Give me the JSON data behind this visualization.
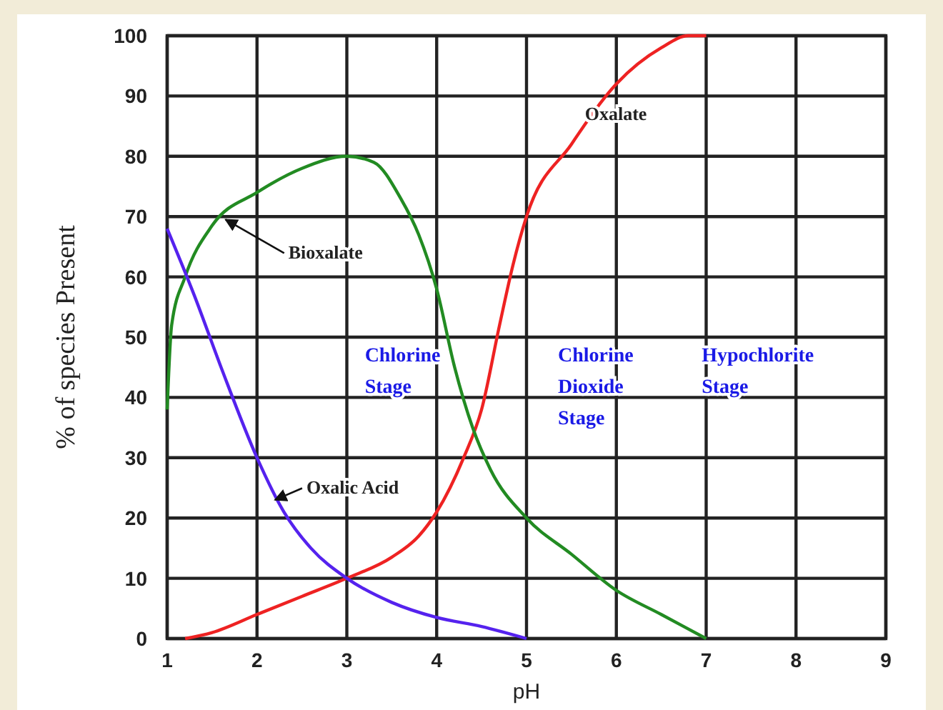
{
  "chart_data": {
    "type": "line",
    "xlabel": "pH",
    "ylabel": "% of species Present",
    "xlim": [
      1,
      9
    ],
    "ylim": [
      0,
      100
    ],
    "xticks": [
      1,
      2,
      3,
      4,
      5,
      6,
      7,
      8,
      9
    ],
    "yticks": [
      0,
      10,
      20,
      30,
      40,
      50,
      60,
      70,
      80,
      90,
      100
    ],
    "grid": true,
    "line_style": "solid",
    "marker": "none",
    "annotations": [
      "Chlorine Stage",
      "Chlorine Dioxide Stage",
      "Hypochlorite Stage"
    ],
    "series": [
      {
        "name": "Oxalate",
        "color": "#ee2222",
        "x": [
          1.2,
          1.5,
          2,
          2.5,
          3,
          3.5,
          3.8,
          4,
          4.3,
          4.5,
          4.7,
          4.85,
          5,
          5.5,
          6,
          6.5,
          6.8,
          7
        ],
        "values": [
          0,
          1,
          4,
          7,
          10,
          13.5,
          17,
          21,
          30,
          38,
          52,
          62,
          70,
          82,
          92,
          98,
          100,
          100
        ]
      },
      {
        "name": "Bioxalate",
        "color": "#228b22",
        "x": [
          1,
          1.05,
          1.2,
          1.5,
          2,
          2.5,
          3,
          3.3,
          3.6,
          3.8,
          4,
          4.2,
          4.4,
          4.6,
          5,
          5.5,
          6,
          6.5,
          7
        ],
        "values": [
          38,
          52,
          60,
          68.5,
          74,
          78,
          80,
          79,
          73,
          67,
          58,
          45,
          35,
          28,
          20,
          14,
          8,
          4,
          0
        ]
      },
      {
        "name": "Oxalic Acid",
        "color": "#5522ee",
        "x": [
          1,
          1.3,
          1.6,
          2,
          2.3,
          2.6,
          3,
          3.5,
          4,
          4.5,
          5
        ],
        "values": [
          68,
          57,
          45,
          30,
          21,
          15,
          10,
          6,
          3.5,
          2,
          0
        ]
      }
    ]
  }
}
